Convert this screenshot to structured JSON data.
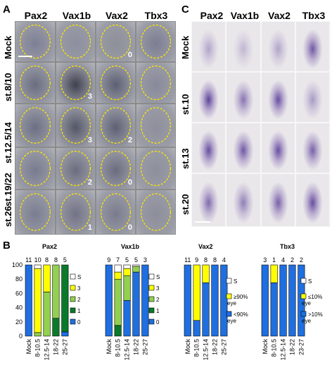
{
  "panel_a": {
    "letter": "A",
    "columns": [
      "Pax2",
      "Vax1b",
      "Vax2",
      "Tbx3"
    ],
    "rows": [
      "Mock",
      "st.8/10",
      "st.12.5/14",
      "st.19/22",
      "st.26"
    ],
    "scores": [
      [
        "",
        "",
        "0",
        ""
      ],
      [
        "",
        "3",
        "",
        ""
      ],
      [
        "",
        "3",
        "2",
        ""
      ],
      [
        "",
        "2",
        "0",
        ""
      ],
      [
        "",
        "1",
        "0",
        ""
      ]
    ]
  },
  "panel_c": {
    "letter": "C",
    "columns": [
      "Pax2",
      "Vax1b",
      "Vax2",
      "Tbx3"
    ],
    "rows": [
      "Mock",
      "st.10",
      "st.13",
      "st.20"
    ]
  },
  "panel_b": {
    "letter": "B"
  },
  "colors": {
    "s": "#ffffff",
    "c3": "#ffff00",
    "c2": "#92d050",
    "c1": "#0a7a2a",
    "c0": "#1f6fe0",
    "yellow_dash": "#ffe800"
  },
  "chart_data": [
    {
      "type": "bar",
      "stacked": true,
      "title": "Pax2",
      "categories": [
        "Mock",
        "8-10.5",
        "12.5-14",
        "18-22",
        "25-27"
      ],
      "n_labels": [
        "11",
        "10",
        "8",
        "8",
        "5"
      ],
      "ylim": [
        0,
        100
      ],
      "yticks": [
        0,
        20,
        40,
        60,
        80,
        100
      ],
      "series": [
        {
          "name": "0",
          "color": "#1f6fe0",
          "values": [
            100,
            0,
            0,
            0,
            6
          ]
        },
        {
          "name": "1",
          "color": "#0a7a2a",
          "values": [
            0,
            0,
            0,
            25,
            94
          ]
        },
        {
          "name": "2",
          "color": "#92d050",
          "values": [
            0,
            5,
            62,
            75,
            0
          ]
        },
        {
          "name": "3",
          "color": "#ffff00",
          "values": [
            0,
            90,
            38,
            0,
            0
          ]
        },
        {
          "name": "S",
          "color": "#ffffff",
          "values": [
            0,
            5,
            0,
            0,
            0
          ]
        }
      ],
      "legend": [
        "S",
        "3",
        "2",
        "1",
        "0"
      ]
    },
    {
      "type": "bar",
      "stacked": true,
      "title": "Vax1b",
      "categories": [
        "Mock",
        "8-10.5",
        "12.5-14",
        "18-22",
        "25-27"
      ],
      "n_labels": [
        "9",
        "7",
        "5",
        "5",
        "3"
      ],
      "ylim": [
        0,
        100
      ],
      "yticks": [
        0,
        20,
        40,
        60,
        80,
        100
      ],
      "series": [
        {
          "name": "0",
          "color": "#1f6fe0",
          "values": [
            100,
            0,
            50,
            90,
            100
          ]
        },
        {
          "name": "1",
          "color": "#0a7a2a",
          "values": [
            0,
            15,
            0,
            0,
            0
          ]
        },
        {
          "name": "2",
          "color": "#92d050",
          "values": [
            0,
            65,
            35,
            8,
            0
          ]
        },
        {
          "name": "3",
          "color": "#ffff00",
          "values": [
            0,
            10,
            10,
            0,
            0
          ]
        },
        {
          "name": "S",
          "color": "#ffffff",
          "values": [
            0,
            10,
            5,
            2,
            0
          ]
        }
      ],
      "legend": [
        "S",
        "3",
        "2",
        "1",
        "0"
      ]
    },
    {
      "type": "bar",
      "stacked": true,
      "title": "Vax2",
      "categories": [
        "Mock",
        "8-10.5",
        "12.5-14",
        "18-22",
        "25-27"
      ],
      "n_labels": [
        "11",
        "9",
        "8",
        "8",
        "4"
      ],
      "ylim": [
        0,
        100
      ],
      "yticks": [
        0,
        20,
        40,
        60,
        80,
        100
      ],
      "series": [
        {
          "name": "<90% eye",
          "color": "#1f6fe0",
          "values": [
            100,
            22,
            75,
            100,
            100
          ]
        },
        {
          "name": "≥90% eye",
          "color": "#ffff00",
          "values": [
            0,
            78,
            25,
            0,
            0
          ]
        },
        {
          "name": "S",
          "color": "#ffffff",
          "values": [
            0,
            0,
            0,
            0,
            0
          ]
        }
      ],
      "legend": [
        "S",
        "≥90% eye",
        "<90% eye"
      ]
    },
    {
      "type": "bar",
      "stacked": true,
      "title": "Tbx3",
      "categories": [
        "Mock",
        "8-10.5",
        "12.5-14",
        "18-22",
        "23-27"
      ],
      "n_labels": [
        "3",
        "1",
        "4",
        "2",
        "2"
      ],
      "ylim": [
        0,
        100
      ],
      "yticks": [
        0,
        20,
        40,
        60,
        80,
        100
      ],
      "series": [
        {
          "name": ">10% eye",
          "color": "#1f6fe0",
          "values": [
            100,
            75,
            100,
            100,
            100
          ]
        },
        {
          "name": "≤10% eye",
          "color": "#ffff00",
          "values": [
            0,
            25,
            0,
            0,
            0
          ]
        },
        {
          "name": "S",
          "color": "#ffffff",
          "values": [
            0,
            0,
            0,
            0,
            0
          ]
        }
      ],
      "legend": [
        "S",
        "≤10% eye",
        ">10% eye"
      ]
    }
  ]
}
